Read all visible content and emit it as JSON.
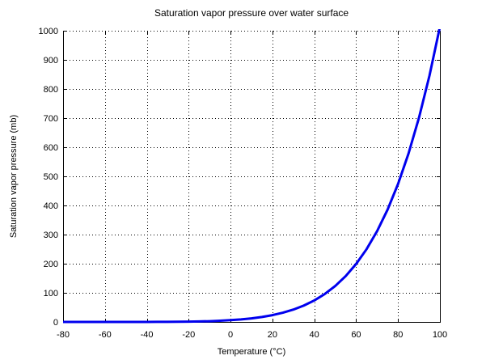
{
  "chart_data": {
    "type": "line",
    "title": "Saturation vapor pressure over water surface",
    "xlabel": "Temperature (°C)",
    "ylabel": "Saturation vapor pressure (mb)",
    "xlim": [
      -80,
      100
    ],
    "ylim": [
      0,
      1000
    ],
    "xticks": [
      -80,
      -60,
      -40,
      -20,
      0,
      20,
      40,
      60,
      80,
      100
    ],
    "xtick_labels": [
      "-80",
      "-60",
      "-40",
      "-20",
      "0",
      "20",
      "40",
      "60",
      "80",
      "100"
    ],
    "yticks": [
      0,
      100,
      200,
      300,
      400,
      500,
      600,
      700,
      800,
      900,
      1000
    ],
    "ytick_labels": [
      "0",
      "100",
      "200",
      "300",
      "400",
      "500",
      "600",
      "700",
      "800",
      "900",
      "1000"
    ],
    "grid": "dotted",
    "grid_color": "#000000",
    "axis_color": "#000000",
    "line_color": "#0000ee",
    "line_width": 3,
    "legend": "none",
    "series": [
      {
        "name": "saturation vapor pressure over water",
        "x": [
          -80,
          -75,
          -70,
          -65,
          -60,
          -55,
          -50,
          -45,
          -40,
          -35,
          -30,
          -25,
          -20,
          -15,
          -10,
          -5,
          0,
          5,
          10,
          15,
          20,
          25,
          30,
          35,
          40,
          45,
          50,
          55,
          60,
          65,
          70,
          75,
          80,
          85,
          90,
          95,
          100
        ],
        "y": [
          0.00055,
          0.0012,
          0.0026,
          0.005,
          0.011,
          0.021,
          0.039,
          0.072,
          0.128,
          0.223,
          0.38,
          0.632,
          1.032,
          1.652,
          2.597,
          4.015,
          6.112,
          8.719,
          12.272,
          17.044,
          23.373,
          31.671,
          42.43,
          56.24,
          73.78,
          95.86,
          123.4,
          157.5,
          199.3,
          250.2,
          311.8,
          385.6,
          473.6,
          578.1,
          701.1,
          845.3,
          1013.25
        ]
      }
    ]
  }
}
